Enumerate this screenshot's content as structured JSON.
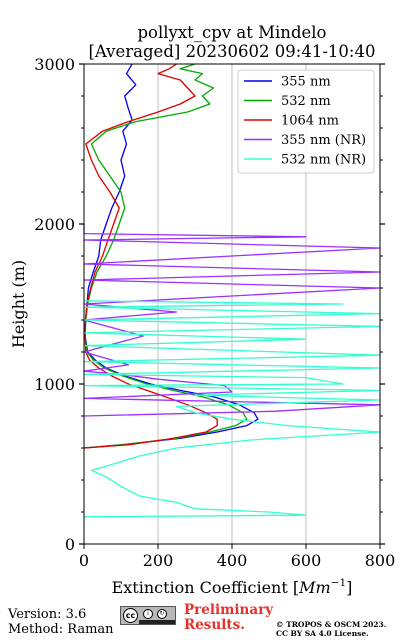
{
  "chart_data": {
    "type": "line",
    "title": "pollyxt_cpv at Mindelo",
    "subtitle": "[Averaged] 20230602 09:41-10:40",
    "xlabel": "Extinction Coefficient [Mm⁻¹]",
    "xlabel_main": "Extinction Coefficient [",
    "xlabel_unit": "Mm",
    "xlabel_exp": "−1",
    "xlabel_close": "]",
    "ylabel": "Height (m)",
    "xlim": [
      0,
      800
    ],
    "ylim": [
      0,
      3000
    ],
    "xticks": [
      "0",
      "200",
      "400",
      "600",
      "800"
    ],
    "yticks": [
      "0",
      "1000",
      "2000",
      "3000"
    ],
    "grid": "vertical",
    "legend_position": "top-right",
    "series": [
      {
        "name": "355 nm",
        "color": "#0000ee",
        "points": [
          [
            0,
            600
          ],
          [
            100,
            620
          ],
          [
            260,
            660
          ],
          [
            360,
            700
          ],
          [
            440,
            740
          ],
          [
            470,
            780
          ],
          [
            460,
            820
          ],
          [
            420,
            870
          ],
          [
            350,
            920
          ],
          [
            260,
            960
          ],
          [
            180,
            1000
          ],
          [
            110,
            1050
          ],
          [
            60,
            1100
          ],
          [
            30,
            1150
          ],
          [
            10,
            1200
          ],
          [
            3,
            1300
          ],
          [
            4,
            1400
          ],
          [
            8,
            1500
          ],
          [
            12,
            1600
          ],
          [
            25,
            1700
          ],
          [
            40,
            1800
          ],
          [
            45,
            1900
          ],
          [
            60,
            2000
          ],
          [
            75,
            2100
          ],
          [
            95,
            2200
          ],
          [
            110,
            2300
          ],
          [
            100,
            2400
          ],
          [
            115,
            2500
          ],
          [
            105,
            2580
          ],
          [
            130,
            2650
          ],
          [
            120,
            2720
          ],
          [
            110,
            2800
          ],
          [
            140,
            2870
          ],
          [
            115,
            2940
          ],
          [
            130,
            3000
          ]
        ]
      },
      {
        "name": "532 nm",
        "color": "#00aa00",
        "points": [
          [
            0,
            600
          ],
          [
            100,
            620
          ],
          [
            250,
            660
          ],
          [
            340,
            700
          ],
          [
            410,
            740
          ],
          [
            440,
            780
          ],
          [
            430,
            820
          ],
          [
            390,
            870
          ],
          [
            320,
            920
          ],
          [
            240,
            960
          ],
          [
            170,
            1000
          ],
          [
            105,
            1050
          ],
          [
            55,
            1100
          ],
          [
            25,
            1150
          ],
          [
            8,
            1200
          ],
          [
            3,
            1300
          ],
          [
            5,
            1400
          ],
          [
            10,
            1500
          ],
          [
            20,
            1600
          ],
          [
            35,
            1700
          ],
          [
            60,
            1800
          ],
          [
            80,
            1900
          ],
          [
            95,
            2000
          ],
          [
            110,
            2100
          ],
          [
            100,
            2200
          ],
          [
            70,
            2300
          ],
          [
            40,
            2400
          ],
          [
            20,
            2500
          ],
          [
            60,
            2580
          ],
          [
            140,
            2640
          ],
          [
            280,
            2700
          ],
          [
            340,
            2750
          ],
          [
            320,
            2800
          ],
          [
            350,
            2850
          ],
          [
            300,
            2900
          ],
          [
            320,
            2940
          ],
          [
            260,
            2970
          ],
          [
            300,
            3000
          ]
        ]
      },
      {
        "name": "1064 nm",
        "color": "#dd0000",
        "points": [
          [
            0,
            600
          ],
          [
            120,
            620
          ],
          [
            240,
            660
          ],
          [
            330,
            700
          ],
          [
            360,
            740
          ],
          [
            360,
            780
          ],
          [
            330,
            820
          ],
          [
            280,
            870
          ],
          [
            220,
            920
          ],
          [
            170,
            960
          ],
          [
            120,
            1000
          ],
          [
            75,
            1050
          ],
          [
            40,
            1100
          ],
          [
            15,
            1150
          ],
          [
            5,
            1200
          ],
          [
            3,
            1300
          ],
          [
            4,
            1400
          ],
          [
            8,
            1500
          ],
          [
            18,
            1600
          ],
          [
            30,
            1700
          ],
          [
            50,
            1800
          ],
          [
            65,
            1900
          ],
          [
            80,
            2000
          ],
          [
            95,
            2100
          ],
          [
            70,
            2200
          ],
          [
            40,
            2300
          ],
          [
            20,
            2400
          ],
          [
            5,
            2500
          ],
          [
            50,
            2580
          ],
          [
            120,
            2640
          ],
          [
            200,
            2700
          ],
          [
            260,
            2750
          ],
          [
            300,
            2800
          ],
          [
            280,
            2850
          ],
          [
            260,
            2900
          ],
          [
            200,
            2940
          ],
          [
            230,
            2970
          ],
          [
            250,
            3000
          ]
        ]
      },
      {
        "name": "355 nm (NR)",
        "color": "#9b30ff",
        "points": [
          [
            0,
            800
          ],
          [
            520,
            830
          ],
          [
            800,
            870
          ],
          [
            0,
            910
          ],
          [
            400,
            950
          ],
          [
            380,
            990
          ],
          [
            200,
            1030
          ],
          [
            100,
            1060
          ],
          [
            0,
            1080
          ],
          [
            120,
            1120
          ],
          [
            0,
            1200
          ],
          [
            160,
            1300
          ],
          [
            0,
            1400
          ],
          [
            250,
            1450
          ],
          [
            0,
            1500
          ],
          [
            800,
            1600
          ],
          [
            0,
            1650
          ],
          [
            800,
            1700
          ],
          [
            0,
            1750
          ],
          [
            800,
            1850
          ],
          [
            0,
            1900
          ],
          [
            600,
            1920
          ],
          [
            0,
            1940
          ],
          [
            0,
            2000
          ]
        ]
      },
      {
        "name": "532 nm (NR)",
        "color": "#33ffcc",
        "points": [
          [
            0,
            170
          ],
          [
            600,
            180
          ],
          [
            500,
            200
          ],
          [
            300,
            220
          ],
          [
            250,
            260
          ],
          [
            150,
            300
          ],
          [
            100,
            360
          ],
          [
            60,
            420
          ],
          [
            20,
            460
          ],
          [
            80,
            500
          ],
          [
            150,
            550
          ],
          [
            250,
            600
          ],
          [
            450,
            650
          ],
          [
            800,
            700
          ],
          [
            550,
            740
          ],
          [
            400,
            780
          ],
          [
            300,
            820
          ],
          [
            250,
            860
          ],
          [
            800,
            900
          ],
          [
            300,
            930
          ],
          [
            800,
            960
          ],
          [
            0,
            990
          ],
          [
            700,
            1000
          ],
          [
            600,
            1040
          ],
          [
            0,
            1060
          ],
          [
            800,
            1100
          ],
          [
            0,
            1140
          ],
          [
            800,
            1180
          ],
          [
            0,
            1240
          ],
          [
            600,
            1280
          ],
          [
            0,
            1320
          ],
          [
            800,
            1360
          ],
          [
            0,
            1400
          ],
          [
            800,
            1440
          ],
          [
            0,
            1480
          ],
          [
            700,
            1500
          ],
          [
            0,
            1520
          ]
        ]
      }
    ]
  },
  "footer": {
    "version": "Version: 3.6",
    "method": "Method: Raman",
    "preliminary_line1": "Preliminary",
    "preliminary_line2": "Results.",
    "copyright_line1": "© TROPOS & OSCM 2023.",
    "copyright_line2": "CC BY SA 4.0 License.",
    "license_badge": "cc"
  }
}
